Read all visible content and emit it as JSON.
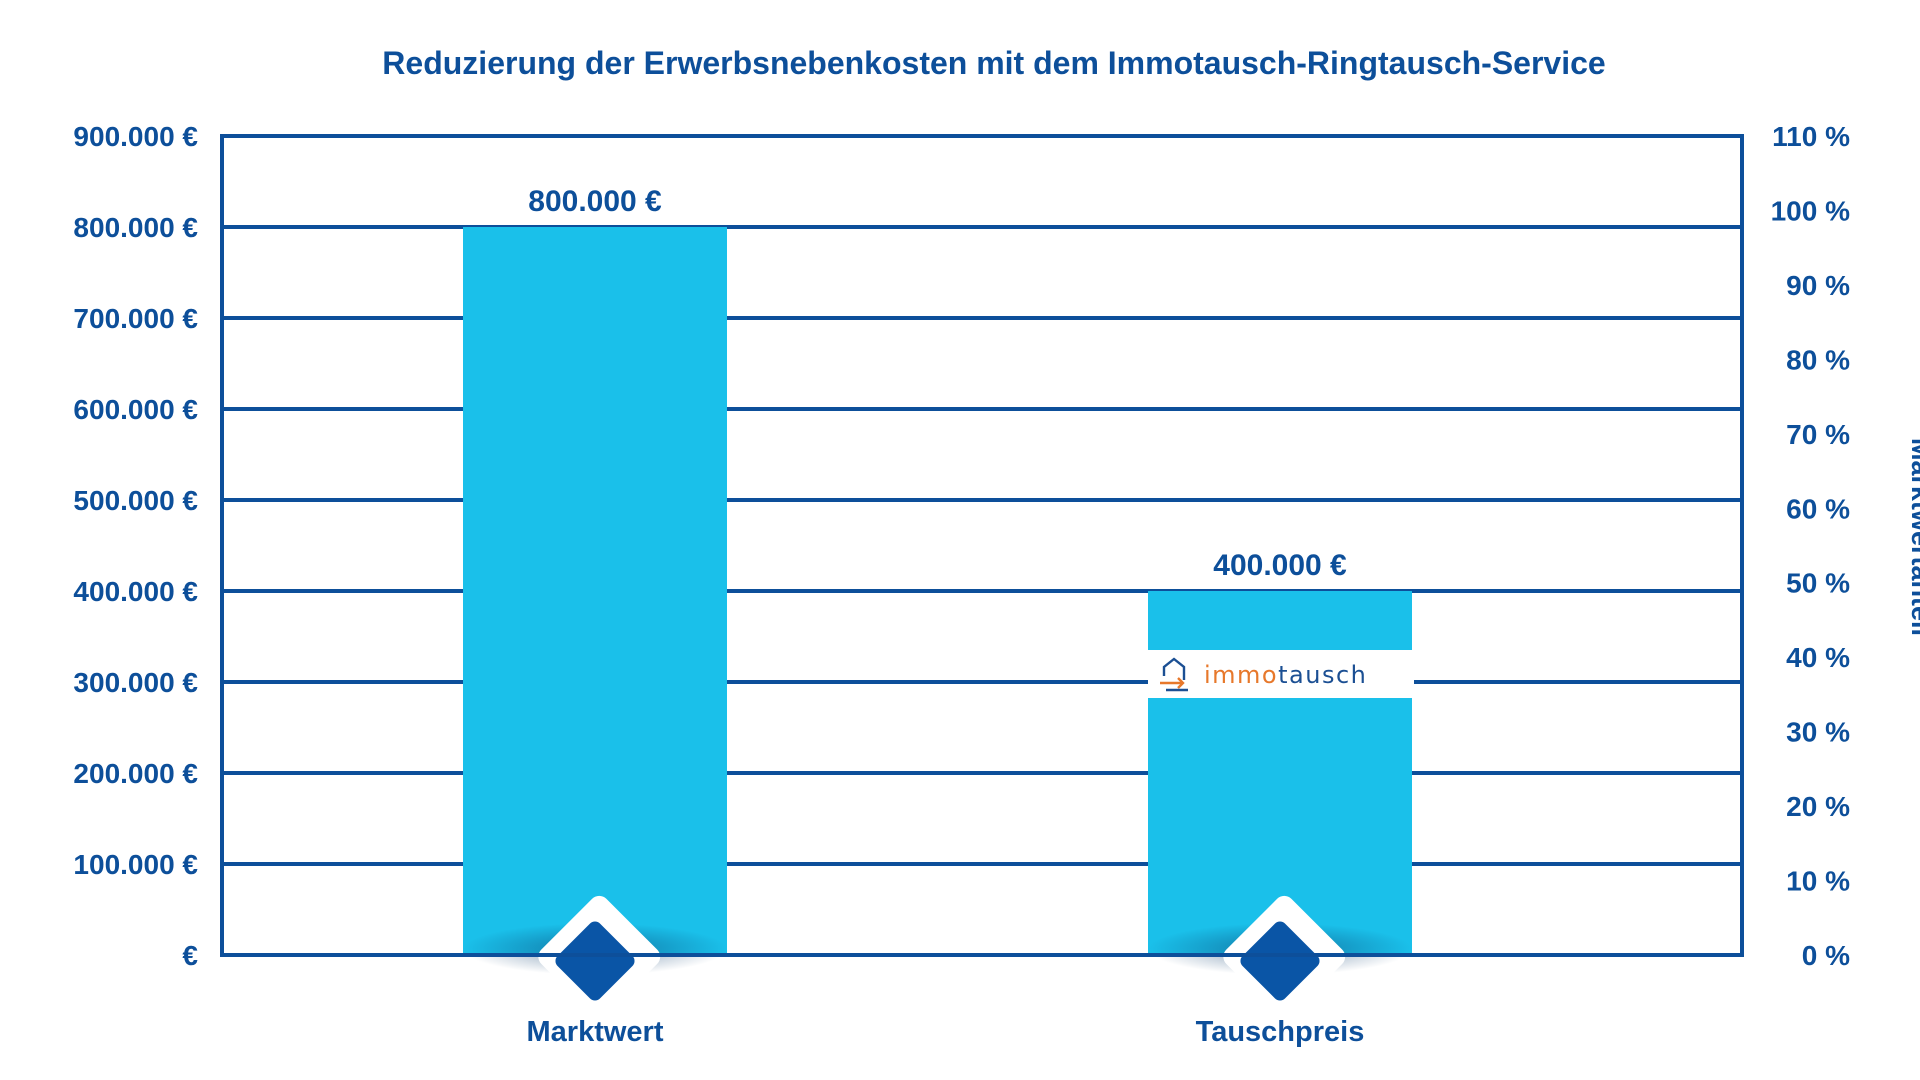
{
  "chart_data": {
    "type": "bar",
    "title": "Reduzierung der Erwerbsnebenkosten mit dem Immotausch-Ringtausch-Service",
    "categories": [
      "Marktwert",
      "Tauschpreis"
    ],
    "values": [
      800000,
      400000
    ],
    "value_labels": [
      "800.000 €",
      "400.000 €"
    ],
    "ylim": [
      0,
      900000
    ],
    "y_ticks": [
      {
        "value": 0,
        "label": "€"
      },
      {
        "value": 100000,
        "label": "100.000 €"
      },
      {
        "value": 200000,
        "label": "200.000 €"
      },
      {
        "value": 300000,
        "label": "300.000 €"
      },
      {
        "value": 400000,
        "label": "400.000 €"
      },
      {
        "value": 500000,
        "label": "500.000 €"
      },
      {
        "value": 600000,
        "label": "600.000 €"
      },
      {
        "value": 700000,
        "label": "700.000 €"
      },
      {
        "value": 800000,
        "label": "800.000 €"
      },
      {
        "value": 900000,
        "label": "900.000 €"
      }
    ],
    "y2lim": [
      0,
      110
    ],
    "y2_ticks": [
      {
        "value": 0,
        "label": "0 %"
      },
      {
        "value": 10,
        "label": "10 %"
      },
      {
        "value": 20,
        "label": "20 %"
      },
      {
        "value": 30,
        "label": "30 %"
      },
      {
        "value": 40,
        "label": "40 %"
      },
      {
        "value": 50,
        "label": "50 %"
      },
      {
        "value": 60,
        "label": "60 %"
      },
      {
        "value": 70,
        "label": "70 %"
      },
      {
        "value": 80,
        "label": "80 %"
      },
      {
        "value": 90,
        "label": "90 %"
      },
      {
        "value": 100,
        "label": "100 %"
      },
      {
        "value": 110,
        "label": "110 %"
      }
    ],
    "y2label": "Marktwertanteil",
    "grid": true,
    "legend": "none",
    "logo_text": {
      "prefix": "immo",
      "suffix": "tausch"
    },
    "colors": {
      "bar": "#1ac0ea",
      "axis": "#0d4f9a",
      "text": "#0d4f9a",
      "marker": "#0a55a6",
      "logo_prefix": "#e7782b",
      "logo_suffix": "#1b4f93"
    }
  }
}
